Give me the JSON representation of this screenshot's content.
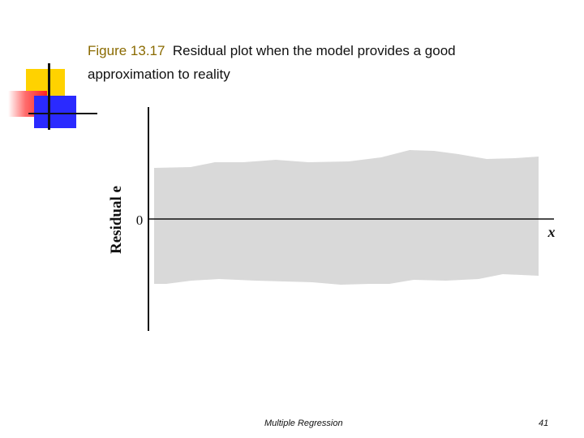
{
  "caption": {
    "figure_label": "Figure 13.17",
    "text": "Residual plot when the model provides a good approximation to reality"
  },
  "plot": {
    "y_label": "Residual e",
    "zero_label": "0",
    "x_label": "x",
    "band_color": "#d9d9d9"
  },
  "footer": {
    "title": "Multiple Regression",
    "page": "41"
  }
}
